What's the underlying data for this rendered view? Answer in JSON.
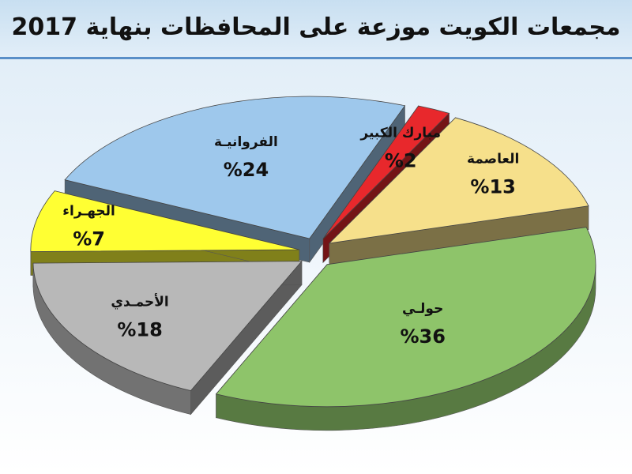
{
  "title": "مجمعات الكويت موزعة على المحافظات بنهاية 2017",
  "chart_data": {
    "type": "pie",
    "title": "مجمعات الكويت موزعة على المحافظات بنهاية 2017",
    "slices": [
      {
        "label": "العاصمة",
        "value": 13,
        "display": "%13",
        "color": "#f6e08b"
      },
      {
        "label": "حولـي",
        "value": 36,
        "display": "%36",
        "color": "#8ec46a"
      },
      {
        "label": "الأحمـدي",
        "value": 18,
        "display": "%18",
        "color": "#b8b8b8"
      },
      {
        "label": "الجهـراء",
        "value": 7,
        "display": "%7",
        "color": "#ffff33"
      },
      {
        "label": "الفروانيـة",
        "value": 24,
        "display": "%24",
        "color": "#9ec8ec"
      },
      {
        "label": "مبارك الكبير",
        "value": 2,
        "display": "%2",
        "color": "#e8282c"
      }
    ]
  }
}
